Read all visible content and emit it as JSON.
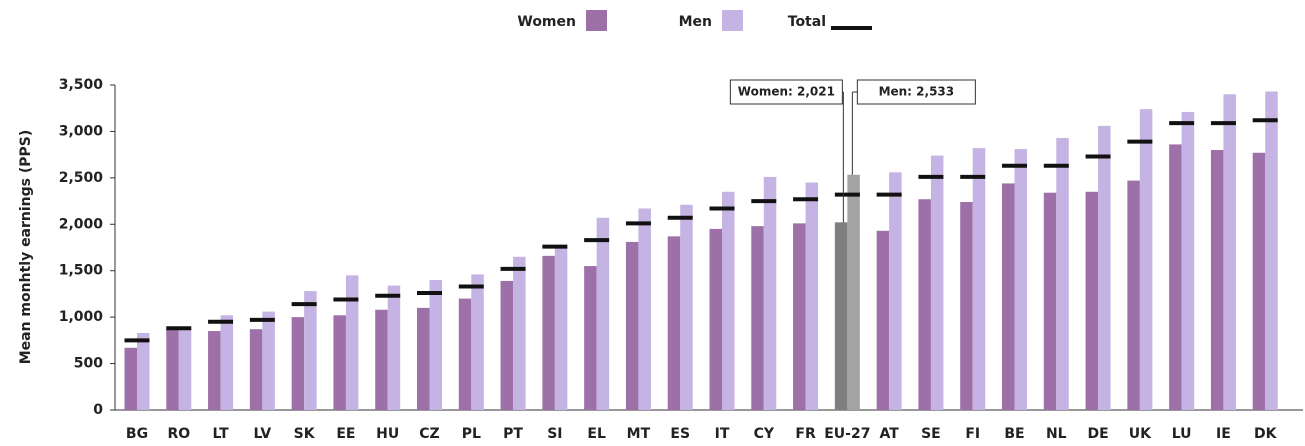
{
  "chart_data": {
    "type": "bar",
    "y_label": "Mean monhtly earnings (PPS)",
    "categories": [
      "BG",
      "RO",
      "LT",
      "LV",
      "SK",
      "EE",
      "HU",
      "CZ",
      "PL",
      "PT",
      "SI",
      "EL",
      "MT",
      "ES",
      "IT",
      "CY",
      "FR",
      "EU-27",
      "AT",
      "SE",
      "FI",
      "BE",
      "NL",
      "DE",
      "UK",
      "LU",
      "IE",
      "DK"
    ],
    "series": [
      {
        "name": "Women",
        "color": "#9e70a8",
        "highlight_color": "#7f7f7f",
        "values": [
          670,
          870,
          850,
          870,
          1000,
          1020,
          1080,
          1100,
          1200,
          1390,
          1660,
          1550,
          1810,
          1870,
          1950,
          1980,
          2010,
          2021,
          1930,
          2270,
          2240,
          2440,
          2340,
          2350,
          2470,
          2860,
          2800,
          2770
        ]
      },
      {
        "name": "Men",
        "color": "#c5b3e3",
        "highlight_color": "#a3a3a3",
        "values": [
          830,
          880,
          1020,
          1060,
          1280,
          1450,
          1340,
          1400,
          1460,
          1650,
          1750,
          2070,
          2170,
          2210,
          2350,
          2510,
          2450,
          2533,
          2560,
          2740,
          2820,
          2810,
          2930,
          3060,
          3240,
          3210,
          3400,
          3430
        ]
      },
      {
        "name": "Total",
        "color": "#111111",
        "marker": "line",
        "values": [
          750,
          880,
          950,
          970,
          1140,
          1190,
          1230,
          1260,
          1330,
          1520,
          1760,
          1830,
          2010,
          2070,
          2170,
          2250,
          2270,
          2320,
          2320,
          2510,
          2510,
          2630,
          2630,
          2730,
          2890,
          3090,
          3090,
          3120
        ]
      }
    ],
    "highlight_index": 17,
    "highlight_label_color": "#8e3a9e",
    "annotations": [
      {
        "text": "Women: 2,021",
        "series": 0
      },
      {
        "text": "Men: 2,533",
        "series": 1
      }
    ],
    "ylim": [
      0,
      3500
    ],
    "yticks": [
      0,
      500,
      {
        "value": 1000,
        "label": "1,000"
      },
      {
        "value": 1500,
        "label": "1,500"
      },
      {
        "value": 2000,
        "label": "2,000"
      },
      {
        "value": 2500,
        "label": "2,500"
      },
      {
        "value": 3000,
        "label": "3,000"
      },
      {
        "value": 3500,
        "label": "3,500"
      }
    ],
    "grid": false,
    "legend": "top"
  }
}
